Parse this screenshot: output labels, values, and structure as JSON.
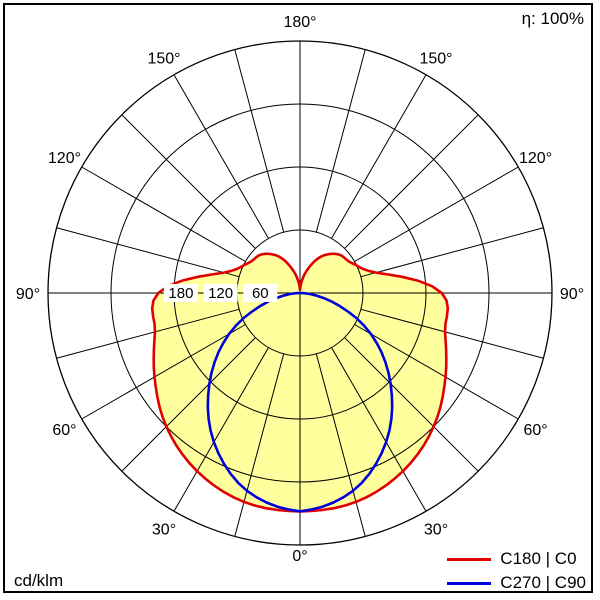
{
  "chart_data": {
    "type": "polar",
    "subtype": "photometric-luminous-intensity-distribution",
    "efficiency": "η: 100%",
    "unit": "cd/klm",
    "r_max": 240,
    "grid": {
      "on": true,
      "spoke_step_deg": 15,
      "rings": [
        {
          "value": 60,
          "label": "60"
        },
        {
          "value": 120,
          "label": "120"
        },
        {
          "value": 180,
          "label": "180"
        }
      ],
      "angle_labels": [
        {
          "value": 0,
          "label": "0°"
        },
        {
          "value": 30,
          "label": "30°"
        },
        {
          "value": 60,
          "label": "60°"
        },
        {
          "value": 90,
          "label": "90°"
        },
        {
          "value": 120,
          "label": "120°"
        },
        {
          "value": 150,
          "label": "150°"
        },
        {
          "value": 180,
          "label": "180°"
        }
      ]
    },
    "legend_position": "bottom-right",
    "series": [
      {
        "name": "C180 | C0",
        "color": "#e00000",
        "fill": "#ffff9e",
        "symmetric": true,
        "gammas": [
          0,
          15,
          30,
          45,
          60,
          75,
          90,
          105,
          120,
          135,
          150,
          165,
          180
        ],
        "values": [
          208,
          206,
          196,
          180,
          160,
          143,
          135,
          75,
          57,
          52,
          40,
          20,
          3
        ]
      },
      {
        "name": "C270 | C90",
        "color": "#0000dd",
        "fill": null,
        "symmetric": true,
        "gammas": [
          0,
          15,
          30,
          45,
          60,
          75,
          90,
          105,
          120,
          135,
          150,
          165,
          180
        ],
        "values": [
          208,
          195,
          164,
          122,
          78,
          31,
          0,
          0,
          0,
          0,
          0,
          0,
          0
        ]
      }
    ]
  }
}
